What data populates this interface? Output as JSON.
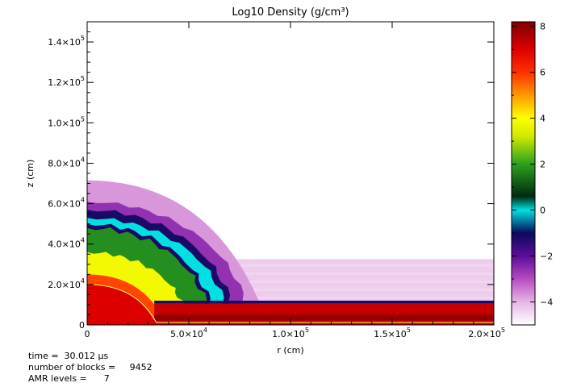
{
  "chart_data": {
    "type": "heatmap",
    "title": "Log10 Density (g/cm³)",
    "xlabel": "r (cm)",
    "ylabel": "z (cm)",
    "xlim": [
      0,
      200000
    ],
    "ylim": [
      0,
      150000
    ],
    "x_ticks": [
      {
        "value": 0,
        "mantissa": "0",
        "exp": ""
      },
      {
        "value": 50000,
        "mantissa": "5.0×10",
        "exp": "4"
      },
      {
        "value": 100000,
        "mantissa": "1.0×10",
        "exp": "5"
      },
      {
        "value": 150000,
        "mantissa": "1.5×10",
        "exp": "5"
      },
      {
        "value": 200000,
        "mantissa": "2.0×10",
        "exp": "5"
      }
    ],
    "y_ticks": [
      {
        "value": 0,
        "mantissa": "0",
        "exp": ""
      },
      {
        "value": 20000,
        "mantissa": "2.0×10",
        "exp": "4"
      },
      {
        "value": 40000,
        "mantissa": "4.0×10",
        "exp": "4"
      },
      {
        "value": 60000,
        "mantissa": "6.0×10",
        "exp": "4"
      },
      {
        "value": 80000,
        "mantissa": "8.0×10",
        "exp": "4"
      },
      {
        "value": 100000,
        "mantissa": "1.0×10",
        "exp": "5"
      },
      {
        "value": 120000,
        "mantissa": "1.2×10",
        "exp": "5"
      },
      {
        "value": 140000,
        "mantissa": "1.4×10",
        "exp": "5"
      }
    ],
    "colorbar": {
      "range": [
        -5,
        8.2
      ],
      "ticks": [
        -4,
        -2,
        0,
        2,
        4,
        6,
        8
      ],
      "tick_labels": [
        "−4",
        "−2",
        "0",
        "2",
        "4",
        "6",
        "8"
      ],
      "colormap": [
        {
          "v": -5,
          "c": "#ffffff"
        },
        {
          "v": -4,
          "c": "#e6b6e6"
        },
        {
          "v": -3,
          "c": "#b64cc0"
        },
        {
          "v": -2,
          "c": "#5c0c9a"
        },
        {
          "v": -1,
          "c": "#0a0a5a"
        },
        {
          "v": 0,
          "c": "#00e0e0"
        },
        {
          "v": 0.6,
          "c": "#002a10"
        },
        {
          "v": 2,
          "c": "#2aa020"
        },
        {
          "v": 3.2,
          "c": "#d0e800"
        },
        {
          "v": 4,
          "c": "#ffff00"
        },
        {
          "v": 5,
          "c": "#ff9900"
        },
        {
          "v": 6,
          "c": "#ff3000"
        },
        {
          "v": 7,
          "c": "#dd0000"
        },
        {
          "v": 8.2,
          "c": "#800000"
        }
      ]
    },
    "regions": [
      {
        "name": "ambient-medium",
        "value": -5
      },
      {
        "name": "disk-atmosphere",
        "value": -4.3
      },
      {
        "name": "shock-envelope",
        "value": -3.7
      },
      {
        "name": "purple-shell",
        "value": -2.6
      },
      {
        "name": "dark-shell",
        "value": -1.2
      },
      {
        "name": "cyan-shell",
        "value": 0
      },
      {
        "name": "green-layer",
        "value": 1.8
      },
      {
        "name": "yellow-layer",
        "value": 3.8
      },
      {
        "name": "orange-core",
        "value": 5.8
      },
      {
        "name": "red-core",
        "value": 7
      },
      {
        "name": "disk-slab",
        "value": 7.3
      }
    ]
  },
  "info": {
    "time_label": "time =  30.012 μs",
    "blocks_label": "number of blocks =     9452",
    "amr_label": "AMR levels =      7"
  }
}
